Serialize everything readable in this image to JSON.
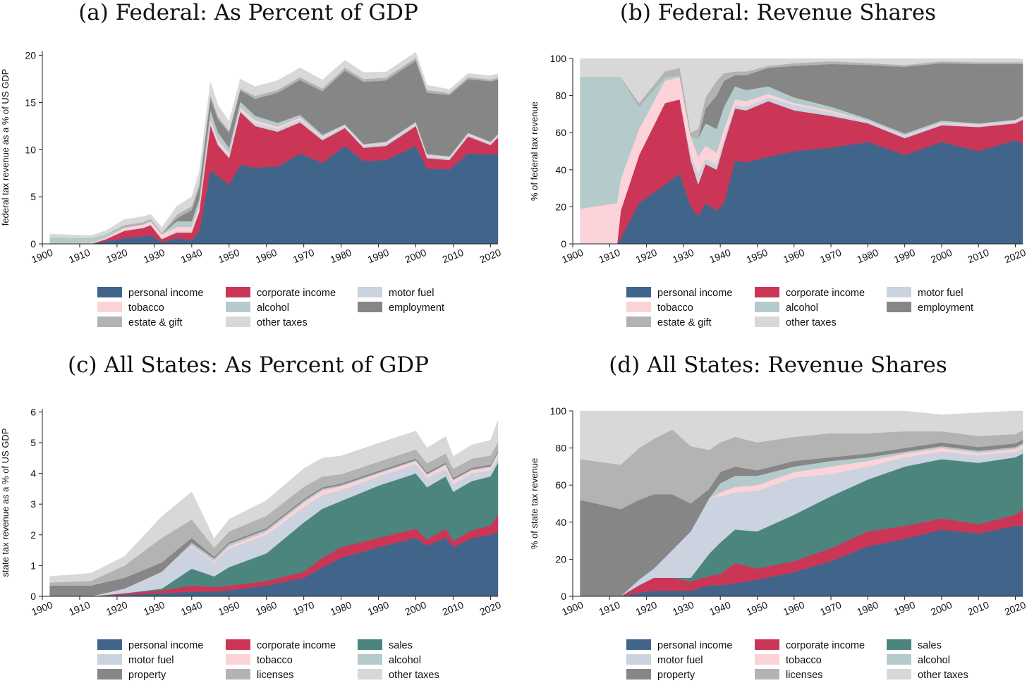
{
  "chart_data": [
    {
      "type": "area",
      "title": "(a) Federal: As Percent of GDP",
      "ylabel": "federal tax revenue as a % of US GDP",
      "xlabel": "",
      "xlim": [
        1900,
        2022
      ],
      "ylim": [
        0,
        20.5
      ],
      "xticks": [
        1900,
        1910,
        1920,
        1930,
        1940,
        1950,
        1960,
        1970,
        1980,
        1990,
        2000,
        2010,
        2020
      ],
      "yticks": [
        0,
        5,
        10,
        15,
        20
      ],
      "stacked": true,
      "legend_position": "bottom",
      "x": [
        1902,
        1913,
        1917,
        1922,
        1927,
        1929,
        1932,
        1936,
        1940,
        1942,
        1945,
        1947,
        1950,
        1953,
        1957,
        1963,
        1969,
        1975,
        1981,
        1986,
        1992,
        2000,
        2003,
        2009,
        2014,
        2020,
        2022
      ],
      "series": [
        {
          "name": "personal income",
          "color": "#41658a",
          "values": [
            0,
            0,
            0.3,
            0.6,
            0.8,
            0.9,
            0.2,
            0.6,
            0.4,
            1.3,
            7.8,
            7.2,
            6.3,
            8.4,
            8.1,
            8.2,
            9.6,
            8.6,
            10.4,
            8.8,
            8.9,
            10.4,
            8.0,
            7.9,
            9.6,
            9.5,
            9.6
          ]
        },
        {
          "name": "corporate income",
          "color": "#cc3656",
          "values": [
            0,
            0,
            0.2,
            0.8,
            0.9,
            1.1,
            0.3,
            0.6,
            0.8,
            2.1,
            4.8,
            3.3,
            2.8,
            5.6,
            4.4,
            3.7,
            3.3,
            2.4,
            1.9,
            1.4,
            1.5,
            2.1,
            1.1,
            1.0,
            1.8,
            1.0,
            1.7
          ]
        },
        {
          "name": "motor fuel",
          "color": "#cad3df",
          "values": [
            0,
            0,
            0,
            0,
            0,
            0,
            0.05,
            0.15,
            0.15,
            0.15,
            0.2,
            0.2,
            0.2,
            0.2,
            0.3,
            0.3,
            0.3,
            0.25,
            0.2,
            0.2,
            0.25,
            0.25,
            0.25,
            0.2,
            0.2,
            0.15,
            0.15
          ]
        },
        {
          "name": "tobacco",
          "color": "#fbd3d8",
          "values": [
            0.05,
            0.1,
            0.15,
            0.3,
            0.35,
            0.4,
            0.45,
            0.45,
            0.45,
            0.5,
            0.4,
            0.35,
            0.3,
            0.3,
            0.3,
            0.25,
            0.2,
            0.15,
            0.1,
            0.1,
            0.1,
            0.1,
            0.1,
            0.1,
            0.1,
            0.1,
            0.1
          ]
        },
        {
          "name": "alcohol",
          "color": "#b5cacb",
          "values": [
            0.6,
            0.5,
            0.35,
            0.1,
            0.05,
            0.05,
            0.05,
            0.6,
            0.6,
            0.7,
            1.0,
            0.8,
            0.6,
            0.6,
            0.5,
            0.4,
            0.3,
            0.2,
            0.1,
            0.1,
            0.1,
            0.1,
            0.1,
            0.1,
            0.1,
            0.1,
            0.1
          ]
        },
        {
          "name": "employment",
          "color": "#868686",
          "values": [
            0,
            0,
            0,
            0,
            0,
            0,
            0,
            0.3,
            1.2,
            1.2,
            1.3,
            1.4,
            1.6,
            1.2,
            1.8,
            3.2,
            3.7,
            4.6,
            5.7,
            6.6,
            6.5,
            6.5,
            6.5,
            6.5,
            5.7,
            6.4,
            5.8
          ]
        },
        {
          "name": "estate & gift",
          "color": "#b3b3b3",
          "values": [
            0,
            0,
            0,
            0.2,
            0.2,
            0.2,
            0.1,
            0.4,
            0.4,
            0.4,
            0.3,
            0.3,
            0.2,
            0.2,
            0.3,
            0.3,
            0.3,
            0.3,
            0.3,
            0.3,
            0.3,
            0.3,
            0.3,
            0.2,
            0.2,
            0.2,
            0.2
          ]
        },
        {
          "name": "other taxes",
          "color": "#d8d8d8",
          "values": [
            0.4,
            0.3,
            0.4,
            0.6,
            0.6,
            0.5,
            0.6,
            0.9,
            1.0,
            1.3,
            1.4,
            1.2,
            1.0,
            1.0,
            1.0,
            1.0,
            1.0,
            0.9,
            0.8,
            0.7,
            0.6,
            0.6,
            0.5,
            0.4,
            0.4,
            0.4,
            0.4
          ]
        }
      ]
    },
    {
      "type": "area",
      "title": "(b) Federal: Revenue Shares",
      "ylabel": "% of federal tax revenue",
      "xlabel": "",
      "xlim": [
        1900,
        2022
      ],
      "ylim": [
        0,
        100
      ],
      "xticks": [
        1900,
        1910,
        1920,
        1930,
        1940,
        1950,
        1960,
        1970,
        1980,
        1990,
        2000,
        2010,
        2020
      ],
      "yticks": [
        0,
        20,
        40,
        60,
        80,
        100
      ],
      "stacked": true,
      "legend_position": "bottom",
      "x": [
        1902,
        1912,
        1913,
        1918,
        1925,
        1929,
        1932,
        1934,
        1936,
        1939,
        1941,
        1944,
        1947,
        1953,
        1960,
        1970,
        1980,
        1990,
        2000,
        2010,
        2020,
        2022
      ],
      "series": [
        {
          "name": "personal income",
          "color": "#41658a",
          "values": [
            0,
            0,
            3,
            22,
            32,
            38,
            20,
            15,
            22,
            18,
            22,
            45,
            44,
            47,
            50,
            52,
            55,
            48,
            55,
            50,
            56,
            54
          ]
        },
        {
          "name": "corporate income",
          "color": "#cc3656",
          "values": [
            0,
            0,
            15,
            26,
            44,
            40,
            25,
            17,
            21,
            22,
            32,
            28,
            28,
            30,
            22,
            17,
            10,
            9,
            9,
            13,
            9,
            13
          ]
        },
        {
          "name": "motor fuel",
          "color": "#cad3df",
          "values": [
            0,
            0,
            0,
            0,
            0,
            0,
            3,
            6,
            3,
            3,
            3,
            2,
            2,
            2,
            3,
            2,
            1,
            1,
            1,
            1,
            1,
            1
          ]
        },
        {
          "name": "tobacco",
          "color": "#fbd3d8",
          "values": [
            19,
            22,
            17,
            14,
            12,
            12,
            10,
            9,
            7,
            6,
            5,
            3,
            3,
            2,
            1,
            1,
            0.5,
            0.5,
            0.5,
            0.5,
            0.5,
            0.5
          ]
        },
        {
          "name": "alcohol",
          "color": "#b5cacb",
          "values": [
            71,
            68,
            55,
            12,
            2,
            1,
            0,
            10,
            12,
            13,
            12,
            7,
            6,
            4,
            3,
            2,
            1,
            1,
            1,
            0.5,
            0.5,
            0.5
          ]
        },
        {
          "name": "employment",
          "color": "#868686",
          "values": [
            0,
            0,
            0,
            0,
            0,
            0,
            0,
            0,
            8,
            18,
            14,
            6,
            8,
            10,
            17,
            23,
            29,
            36,
            31,
            32,
            30,
            28
          ]
        },
        {
          "name": "estate & gift",
          "color": "#b3b3b3",
          "values": [
            0,
            0,
            0,
            2,
            3,
            4,
            2,
            5,
            6,
            8,
            4,
            2,
            2,
            1,
            1.5,
            1.5,
            1,
            1,
            1,
            1,
            1,
            1
          ]
        },
        {
          "name": "other taxes",
          "color": "#d8d8d8",
          "values": [
            10,
            10,
            10,
            24,
            7,
            5,
            40,
            38,
            21,
            12,
            8,
            7,
            7,
            4,
            2.5,
            1.5,
            2.5,
            3.5,
            1.5,
            2,
            2,
            1.5
          ]
        }
      ]
    },
    {
      "type": "area",
      "title": "(c) All States: As Percent of GDP",
      "ylabel": "state tax revenue as a % of US GDP",
      "xlabel": "",
      "xlim": [
        1900,
        2022
      ],
      "ylim": [
        0,
        6.1
      ],
      "xticks": [
        1900,
        1910,
        1920,
        1930,
        1940,
        1950,
        1960,
        1970,
        1980,
        1990,
        2000,
        2010,
        2020
      ],
      "yticks": [
        0,
        1,
        2,
        3,
        4,
        5,
        6
      ],
      "stacked": true,
      "legend_position": "bottom",
      "x": [
        1902,
        1913,
        1922,
        1932,
        1940,
        1946,
        1950,
        1960,
        1970,
        1975,
        1980,
        1990,
        2000,
        2003,
        2008,
        2010,
        2015,
        2020,
        2022
      ],
      "series": [
        {
          "name": "personal income",
          "color": "#41658a",
          "values": [
            0,
            0,
            0.05,
            0.1,
            0.15,
            0.15,
            0.2,
            0.35,
            0.6,
            0.95,
            1.25,
            1.6,
            1.9,
            1.65,
            1.9,
            1.6,
            1.9,
            2.0,
            2.1
          ]
        },
        {
          "name": "corporate income",
          "color": "#cc3656",
          "values": [
            0,
            0,
            0.05,
            0.1,
            0.2,
            0.15,
            0.15,
            0.15,
            0.2,
            0.3,
            0.35,
            0.3,
            0.3,
            0.2,
            0.3,
            0.2,
            0.25,
            0.3,
            0.55
          ]
        },
        {
          "name": "sales",
          "color": "#4b857e",
          "values": [
            0,
            0,
            0,
            0.05,
            0.55,
            0.35,
            0.6,
            0.9,
            1.6,
            1.6,
            1.5,
            1.7,
            1.8,
            1.7,
            1.7,
            1.6,
            1.6,
            1.6,
            1.7
          ]
        },
        {
          "name": "motor fuel",
          "color": "#cad3df",
          "values": [
            0,
            0,
            0.15,
            0.55,
            0.7,
            0.45,
            0.6,
            0.6,
            0.5,
            0.45,
            0.35,
            0.3,
            0.3,
            0.3,
            0.25,
            0.25,
            0.25,
            0.2,
            0.2
          ]
        },
        {
          "name": "tobacco",
          "color": "#fbd3d8",
          "values": [
            0,
            0,
            0,
            0,
            0.05,
            0.05,
            0.08,
            0.1,
            0.15,
            0.15,
            0.13,
            0.1,
            0.1,
            0.1,
            0.12,
            0.12,
            0.1,
            0.1,
            0.1
          ]
        },
        {
          "name": "alcohol",
          "color": "#b5cacb",
          "values": [
            0,
            0,
            0,
            0,
            0.1,
            0.08,
            0.08,
            0.07,
            0.06,
            0.05,
            0.04,
            0.03,
            0.03,
            0.03,
            0.03,
            0.03,
            0.03,
            0.03,
            0.03
          ]
        },
        {
          "name": "property",
          "color": "#868686",
          "values": [
            0.35,
            0.35,
            0.35,
            0.3,
            0.15,
            0.05,
            0.05,
            0.05,
            0.05,
            0.05,
            0.05,
            0.05,
            0.05,
            0.05,
            0.05,
            0.05,
            0.05,
            0.05,
            0.05
          ]
        },
        {
          "name": "licenses",
          "color": "#b3b3b3",
          "values": [
            0.1,
            0.15,
            0.4,
            0.8,
            0.6,
            0.3,
            0.35,
            0.4,
            0.4,
            0.35,
            0.3,
            0.3,
            0.3,
            0.3,
            0.3,
            0.3,
            0.3,
            0.3,
            0.3
          ]
        },
        {
          "name": "other taxes",
          "color": "#d8d8d8",
          "values": [
            0.2,
            0.25,
            0.3,
            0.7,
            0.9,
            0.3,
            0.4,
            0.5,
            0.6,
            0.6,
            0.6,
            0.6,
            0.6,
            0.5,
            0.55,
            0.4,
            0.45,
            0.5,
            0.7
          ]
        }
      ]
    },
    {
      "type": "area",
      "title": "(d) All States: Revenue Shares",
      "ylabel": "% of state tax revenue",
      "xlabel": "",
      "xlim": [
        1900,
        2022
      ],
      "ylim": [
        0,
        100
      ],
      "xticks": [
        1900,
        1910,
        1920,
        1930,
        1940,
        1950,
        1960,
        1970,
        1980,
        1990,
        2000,
        2010,
        2020
      ],
      "yticks": [
        0,
        20,
        40,
        60,
        80,
        100
      ],
      "stacked": true,
      "legend_position": "bottom",
      "x": [
        1902,
        1913,
        1918,
        1922,
        1927,
        1932,
        1937,
        1940,
        1944,
        1950,
        1960,
        1970,
        1980,
        1990,
        2000,
        2010,
        2020,
        2022
      ],
      "series": [
        {
          "name": "personal income",
          "color": "#41658a",
          "values": [
            0,
            0,
            2,
            3,
            3,
            3,
            6,
            6,
            7,
            9,
            13,
            19,
            27,
            31,
            36,
            34,
            38,
            38
          ]
        },
        {
          "name": "corporate income",
          "color": "#cc3656",
          "values": [
            0,
            0,
            4,
            7,
            7,
            5,
            5,
            6,
            11,
            6,
            6,
            7,
            8,
            7,
            6,
            5,
            6,
            9
          ]
        },
        {
          "name": "sales",
          "color": "#4b857e",
          "values": [
            0,
            0,
            0,
            0,
            0,
            2,
            12,
            17,
            18,
            20,
            25,
            28,
            28,
            32,
            32,
            33,
            31,
            30
          ]
        },
        {
          "name": "motor fuel",
          "color": "#cad3df",
          "values": [
            0,
            0,
            3,
            5,
            15,
            25,
            30,
            25,
            20,
            22,
            20,
            12,
            7,
            5,
            4,
            4,
            3,
            3
          ]
        },
        {
          "name": "tobacco",
          "color": "#fbd3d8",
          "values": [
            0,
            0,
            0,
            0,
            0,
            0,
            0,
            2,
            3,
            3,
            3,
            4,
            3,
            2,
            2,
            1.5,
            1.5,
            1.5
          ]
        },
        {
          "name": "alcohol",
          "color": "#b5cacb",
          "values": [
            0,
            0,
            0,
            0,
            0,
            0,
            0,
            5,
            6,
            5,
            3,
            3,
            2,
            1,
            1,
            1,
            1,
            1
          ]
        },
        {
          "name": "property",
          "color": "#868686",
          "values": [
            52,
            47,
            43,
            40,
            30,
            15,
            5,
            6,
            5,
            3,
            3,
            2,
            2,
            2,
            2,
            2,
            2,
            2
          ]
        },
        {
          "name": "licenses",
          "color": "#b3b3b3",
          "values": [
            22,
            24,
            28,
            30,
            35,
            31,
            21,
            16,
            16,
            15,
            13,
            13,
            11,
            9,
            6,
            6,
            5,
            5
          ]
        },
        {
          "name": "other taxes",
          "color": "#d8d8d8",
          "values": [
            26,
            29,
            20,
            15,
            10,
            19,
            21,
            17,
            14,
            17,
            14,
            12,
            12,
            11,
            9,
            12.5,
            12.5,
            10.5
          ]
        }
      ]
    }
  ]
}
